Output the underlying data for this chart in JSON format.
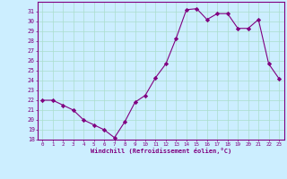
{
  "x": [
    0,
    1,
    2,
    3,
    4,
    5,
    6,
    7,
    8,
    9,
    10,
    11,
    12,
    13,
    14,
    15,
    16,
    17,
    18,
    19,
    20,
    21,
    22,
    23
  ],
  "y": [
    22,
    22,
    21.5,
    21,
    20,
    19.5,
    19,
    18.2,
    19.8,
    21.8,
    22.5,
    24.3,
    25.7,
    28.3,
    31.2,
    31.3,
    30.2,
    30.8,
    30.8,
    29.3,
    29.3,
    30.2,
    25.7,
    24.2
  ],
  "line_color": "#800080",
  "marker": "D",
  "marker_size": 2.2,
  "bg_color": "#cceeff",
  "grid_color": "#aaddcc",
  "xlabel": "Windchill (Refroidissement éolien,°C)",
  "xlabel_color": "#800080",
  "tick_color": "#800080",
  "ylim": [
    18,
    32
  ],
  "yticks": [
    18,
    19,
    20,
    21,
    22,
    23,
    24,
    25,
    26,
    27,
    28,
    29,
    30,
    31
  ],
  "xlim": [
    -0.5,
    23.5
  ],
  "xticks": [
    0,
    1,
    2,
    3,
    4,
    5,
    6,
    7,
    8,
    9,
    10,
    11,
    12,
    13,
    14,
    15,
    16,
    17,
    18,
    19,
    20,
    21,
    22,
    23
  ]
}
